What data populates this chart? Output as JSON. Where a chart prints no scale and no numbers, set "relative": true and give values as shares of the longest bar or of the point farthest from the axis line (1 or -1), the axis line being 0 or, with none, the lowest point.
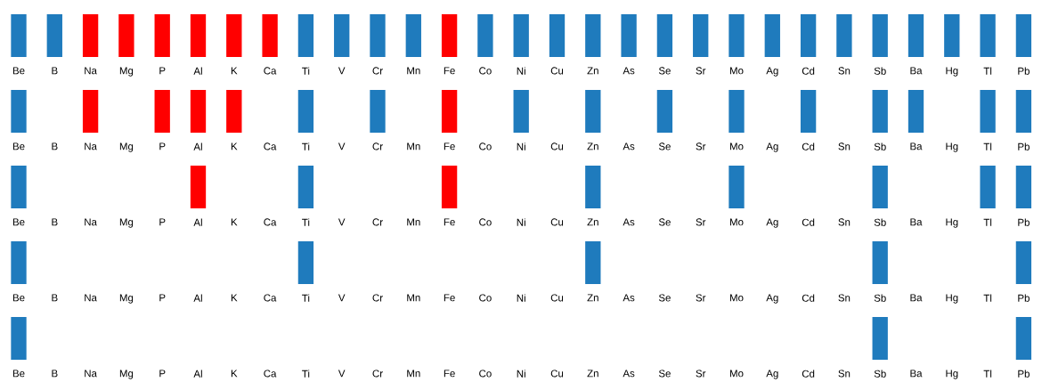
{
  "chart_data": [
    {
      "type": "bar",
      "relative": true,
      "categories": [
        "Be",
        "B",
        "Na",
        "Mg",
        "P",
        "Al",
        "K",
        "Ca",
        "Ti",
        "V",
        "Cr",
        "Mn",
        "Fe",
        "Co",
        "Ni",
        "Cu",
        "Zn",
        "As",
        "Se",
        "Sr",
        "Mo",
        "Ag",
        "Cd",
        "Sn",
        "Sb",
        "Ba",
        "Hg",
        "Tl",
        "Pb"
      ],
      "values": [
        1,
        1,
        1,
        1,
        1,
        1,
        1,
        1,
        1,
        1,
        1,
        1,
        1,
        1,
        1,
        1,
        1,
        1,
        1,
        1,
        1,
        1,
        1,
        1,
        1,
        1,
        1,
        1,
        1
      ],
      "colors": [
        "#1f7bbd",
        "#1f7bbd",
        "#ff0000",
        "#ff0000",
        "#ff0000",
        "#ff0000",
        "#ff0000",
        "#ff0000",
        "#1f7bbd",
        "#1f7bbd",
        "#1f7bbd",
        "#1f7bbd",
        "#ff0000",
        "#1f7bbd",
        "#1f7bbd",
        "#1f7bbd",
        "#1f7bbd",
        "#1f7bbd",
        "#1f7bbd",
        "#1f7bbd",
        "#1f7bbd",
        "#1f7bbd",
        "#1f7bbd",
        "#1f7bbd",
        "#1f7bbd",
        "#1f7bbd",
        "#1f7bbd",
        "#1f7bbd",
        "#1f7bbd"
      ]
    },
    {
      "type": "bar",
      "relative": true,
      "categories": [
        "Be",
        "B",
        "Na",
        "Mg",
        "P",
        "Al",
        "K",
        "Ca",
        "Ti",
        "V",
        "Cr",
        "Mn",
        "Fe",
        "Co",
        "Ni",
        "Cu",
        "Zn",
        "As",
        "Se",
        "Sr",
        "Mo",
        "Ag",
        "Cd",
        "Sn",
        "Sb",
        "Ba",
        "Hg",
        "Tl",
        "Pb"
      ],
      "values": [
        1,
        null,
        1,
        null,
        1,
        1,
        1,
        null,
        1,
        null,
        1,
        null,
        1,
        null,
        1,
        null,
        1,
        null,
        1,
        null,
        1,
        null,
        1,
        null,
        1,
        1,
        null,
        1,
        1
      ],
      "colors": [
        "#1f7bbd",
        "#1f7bbd",
        "#ff0000",
        "#ff0000",
        "#ff0000",
        "#ff0000",
        "#ff0000",
        "#ff0000",
        "#1f7bbd",
        "#1f7bbd",
        "#1f7bbd",
        "#1f7bbd",
        "#ff0000",
        "#1f7bbd",
        "#1f7bbd",
        "#1f7bbd",
        "#1f7bbd",
        "#1f7bbd",
        "#1f7bbd",
        "#1f7bbd",
        "#1f7bbd",
        "#1f7bbd",
        "#1f7bbd",
        "#1f7bbd",
        "#1f7bbd",
        "#1f7bbd",
        "#1f7bbd",
        "#1f7bbd",
        "#1f7bbd"
      ]
    },
    {
      "type": "bar",
      "relative": true,
      "categories": [
        "Be",
        "B",
        "Na",
        "Mg",
        "P",
        "Al",
        "K",
        "Ca",
        "Ti",
        "V",
        "Cr",
        "Mn",
        "Fe",
        "Co",
        "Ni",
        "Cu",
        "Zn",
        "As",
        "Se",
        "Sr",
        "Mo",
        "Ag",
        "Cd",
        "Sn",
        "Sb",
        "Ba",
        "Hg",
        "Tl",
        "Pb"
      ],
      "values": [
        1,
        null,
        null,
        null,
        null,
        1,
        null,
        null,
        1,
        null,
        null,
        null,
        1,
        null,
        null,
        null,
        1,
        null,
        null,
        null,
        1,
        null,
        null,
        null,
        1,
        null,
        null,
        1,
        1
      ],
      "colors": [
        "#1f7bbd",
        "#1f7bbd",
        "#ff0000",
        "#ff0000",
        "#ff0000",
        "#ff0000",
        "#ff0000",
        "#ff0000",
        "#1f7bbd",
        "#1f7bbd",
        "#1f7bbd",
        "#1f7bbd",
        "#ff0000",
        "#1f7bbd",
        "#1f7bbd",
        "#1f7bbd",
        "#1f7bbd",
        "#1f7bbd",
        "#1f7bbd",
        "#1f7bbd",
        "#1f7bbd",
        "#1f7bbd",
        "#1f7bbd",
        "#1f7bbd",
        "#1f7bbd",
        "#1f7bbd",
        "#1f7bbd",
        "#1f7bbd",
        "#1f7bbd"
      ]
    },
    {
      "type": "bar",
      "relative": true,
      "categories": [
        "Be",
        "B",
        "Na",
        "Mg",
        "P",
        "Al",
        "K",
        "Ca",
        "Ti",
        "V",
        "Cr",
        "Mn",
        "Fe",
        "Co",
        "Ni",
        "Cu",
        "Zn",
        "As",
        "Se",
        "Sr",
        "Mo",
        "Ag",
        "Cd",
        "Sn",
        "Sb",
        "Ba",
        "Hg",
        "Tl",
        "Pb"
      ],
      "values": [
        1,
        null,
        null,
        null,
        null,
        null,
        null,
        null,
        1,
        null,
        null,
        null,
        null,
        null,
        null,
        null,
        1,
        null,
        null,
        null,
        null,
        null,
        null,
        null,
        1,
        null,
        null,
        null,
        1
      ],
      "colors": [
        "#1f7bbd",
        "#1f7bbd",
        "#ff0000",
        "#ff0000",
        "#ff0000",
        "#ff0000",
        "#ff0000",
        "#ff0000",
        "#1f7bbd",
        "#1f7bbd",
        "#1f7bbd",
        "#1f7bbd",
        "#ff0000",
        "#1f7bbd",
        "#1f7bbd",
        "#1f7bbd",
        "#1f7bbd",
        "#1f7bbd",
        "#1f7bbd",
        "#1f7bbd",
        "#1f7bbd",
        "#1f7bbd",
        "#1f7bbd",
        "#1f7bbd",
        "#1f7bbd",
        "#1f7bbd",
        "#1f7bbd",
        "#1f7bbd",
        "#1f7bbd"
      ]
    },
    {
      "type": "bar",
      "relative": true,
      "categories": [
        "Be",
        "B",
        "Na",
        "Mg",
        "P",
        "Al",
        "K",
        "Ca",
        "Ti",
        "V",
        "Cr",
        "Mn",
        "Fe",
        "Co",
        "Ni",
        "Cu",
        "Zn",
        "As",
        "Se",
        "Sr",
        "Mo",
        "Ag",
        "Cd",
        "Sn",
        "Sb",
        "Ba",
        "Hg",
        "Tl",
        "Pb"
      ],
      "values": [
        1,
        null,
        null,
        null,
        null,
        null,
        null,
        null,
        null,
        null,
        null,
        null,
        null,
        null,
        null,
        null,
        null,
        null,
        null,
        null,
        null,
        null,
        null,
        null,
        1,
        null,
        null,
        null,
        1
      ],
      "colors": [
        "#1f7bbd",
        "#1f7bbd",
        "#ff0000",
        "#ff0000",
        "#ff0000",
        "#ff0000",
        "#ff0000",
        "#ff0000",
        "#1f7bbd",
        "#1f7bbd",
        "#1f7bbd",
        "#1f7bbd",
        "#ff0000",
        "#1f7bbd",
        "#1f7bbd",
        "#1f7bbd",
        "#1f7bbd",
        "#1f7bbd",
        "#1f7bbd",
        "#1f7bbd",
        "#1f7bbd",
        "#1f7bbd",
        "#1f7bbd",
        "#1f7bbd",
        "#1f7bbd",
        "#1f7bbd",
        "#1f7bbd",
        "#1f7bbd",
        "#1f7bbd"
      ]
    }
  ]
}
